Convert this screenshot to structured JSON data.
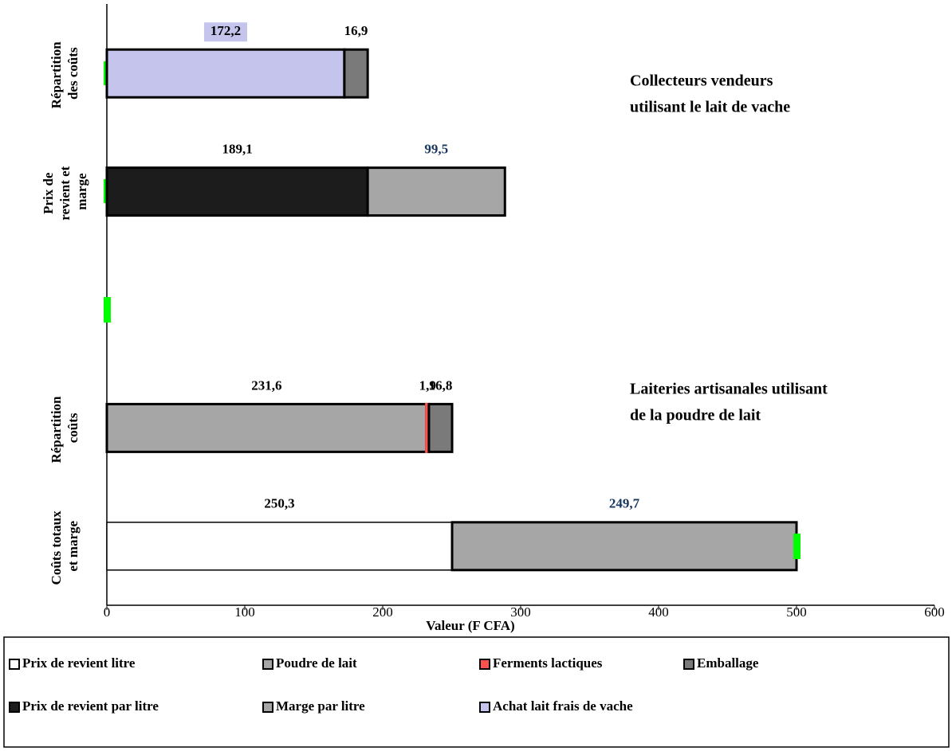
{
  "chart_data": {
    "type": "stacked-barh",
    "x_label": "Valeur (F CFA)",
    "categories": [
      "Répartition des coûts",
      "Prix de revient et marge",
      null,
      "Répartition coûts",
      "Coûts totaux et marge"
    ],
    "xlim": [
      0,
      600
    ],
    "xticks": [
      0,
      100,
      200,
      300,
      400,
      500,
      600
    ],
    "annotations": [
      {
        "lines": [
          "Collecteurs vendeurs",
          "utilisant le lait de vache"
        ]
      },
      {
        "lines": [
          "Laiteries artisanales utilisant",
          "de la poudre de lait"
        ]
      }
    ],
    "series": [
      {
        "name": "Achat lait frais de vache",
        "color": "#c4c4ec",
        "values": [
          172.2,
          null,
          null,
          null,
          null
        ],
        "value_labels": [
          "172,2",
          null,
          null,
          null,
          null
        ]
      },
      {
        "name": "Prix de revient par litre",
        "color": "#1c1c1c",
        "values": [
          null,
          189.1,
          null,
          null,
          null
        ],
        "value_labels": [
          null,
          "189,1",
          null,
          null,
          null
        ]
      },
      {
        "name": "Prix de revient litre",
        "color": "#ffffff",
        "values": [
          null,
          null,
          null,
          null,
          250.3
        ],
        "value_labels": [
          null,
          null,
          null,
          null,
          "250,3"
        ]
      },
      {
        "name": "Poudre de lait",
        "color": "#a6a6a6",
        "values": [
          null,
          null,
          null,
          231.6,
          null
        ],
        "value_labels": [
          null,
          null,
          null,
          "231,6",
          null
        ]
      },
      {
        "name": "Ferments lactiques",
        "color": "#ff5050",
        "values": [
          null,
          null,
          null,
          1.9,
          null
        ],
        "value_labels": [
          null,
          null,
          null,
          "1,9",
          null
        ]
      },
      {
        "name": "Emballage",
        "color": "#7a7a7a",
        "values": [
          16.9,
          null,
          null,
          16.8,
          null
        ],
        "value_labels": [
          "16,9",
          null,
          null,
          "16,8",
          null
        ]
      },
      {
        "name": "Marge par litre",
        "color": "#a6a6a6",
        "label_color": "#17375e",
        "values": [
          null,
          99.5,
          null,
          null,
          249.7
        ],
        "value_labels": [
          null,
          "99,5",
          null,
          null,
          "249,7"
        ]
      }
    ],
    "legend_order": [
      2,
      3,
      4,
      5,
      1,
      6,
      0
    ]
  }
}
